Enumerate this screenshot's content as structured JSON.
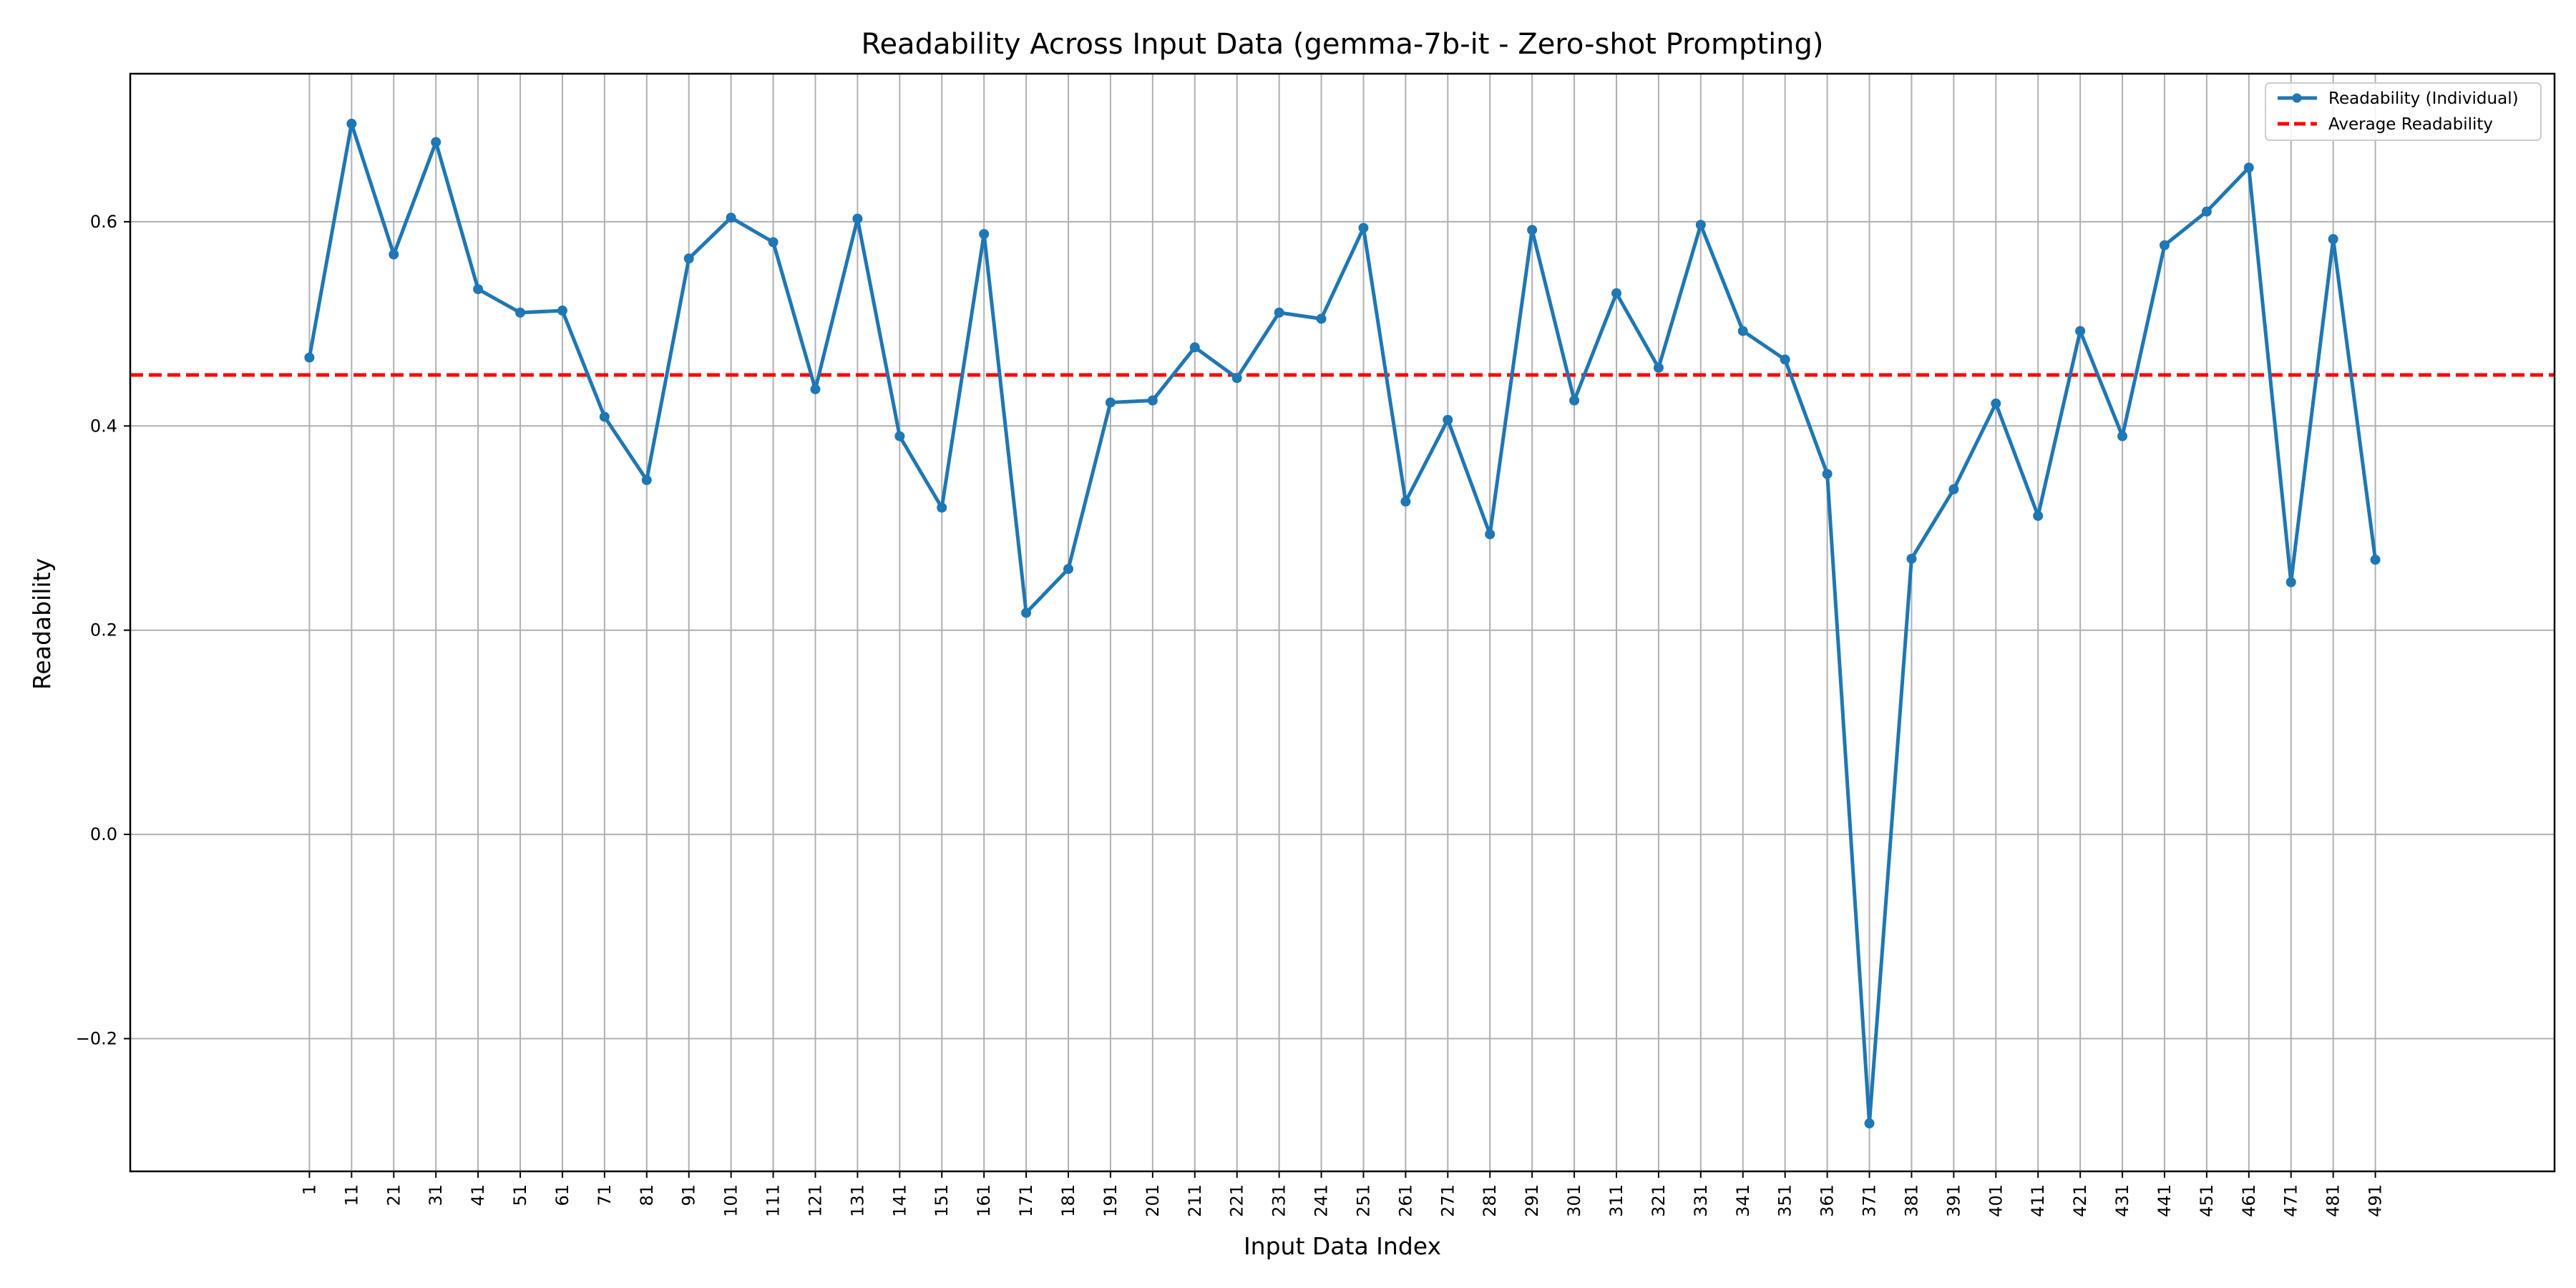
{
  "chart_data": {
    "type": "line",
    "title": "Readability Across Input Data (gemma-7b-it - Zero-shot Prompting)",
    "xlabel": "Input Data Index",
    "ylabel": "Readability",
    "xlim": [
      -41.5,
      533.5
    ],
    "ylim": [
      -0.33,
      0.745
    ],
    "grid": true,
    "legend_position": "top-right",
    "x_ticks": [
      "1",
      "11",
      "21",
      "31",
      "41",
      "51",
      "61",
      "71",
      "81",
      "91",
      "101",
      "111",
      "121",
      "131",
      "141",
      "151",
      "161",
      "171",
      "181",
      "191",
      "201",
      "211",
      "221",
      "231",
      "241",
      "251",
      "261",
      "271",
      "281",
      "291",
      "301",
      "311",
      "321",
      "331",
      "341",
      "351",
      "361",
      "371",
      "381",
      "391",
      "401",
      "411",
      "421",
      "431",
      "441",
      "451",
      "461",
      "471",
      "481",
      "491"
    ],
    "y_ticks": [
      {
        "value": -0.2,
        "label": "−0.2"
      },
      {
        "value": 0.0,
        "label": "0.0"
      },
      {
        "value": 0.2,
        "label": "0.2"
      },
      {
        "value": 0.4,
        "label": "0.4"
      },
      {
        "value": 0.6,
        "label": "0.6"
      }
    ],
    "series": [
      {
        "name": "Readability (Individual)",
        "color": "#1f77b4",
        "marker": "circle",
        "x": [
          1,
          11,
          21,
          31,
          41,
          51,
          61,
          71,
          81,
          91,
          101,
          111,
          121,
          131,
          141,
          151,
          161,
          171,
          181,
          191,
          201,
          211,
          221,
          231,
          241,
          251,
          261,
          271,
          281,
          291,
          301,
          311,
          321,
          331,
          341,
          351,
          361,
          371,
          381,
          391,
          401,
          411,
          421,
          431,
          441,
          451,
          461,
          471,
          481,
          491
        ],
        "values": [
          0.467,
          0.696,
          0.568,
          0.678,
          0.534,
          0.511,
          0.513,
          0.409,
          0.347,
          0.564,
          0.604,
          0.58,
          0.436,
          0.603,
          0.39,
          0.32,
          0.588,
          0.217,
          0.26,
          0.423,
          0.425,
          0.477,
          0.447,
          0.511,
          0.505,
          0.594,
          0.326,
          0.406,
          0.294,
          0.592,
          0.425,
          0.53,
          0.457,
          0.597,
          0.493,
          0.465,
          0.353,
          -0.283,
          0.27,
          0.338,
          0.422,
          0.312,
          0.493,
          0.39,
          0.577,
          0.61,
          0.653,
          0.247,
          0.583,
          0.269
        ]
      },
      {
        "name": "Average Readability",
        "color": "#ff0000",
        "style": "dashed",
        "constant": 0.45
      }
    ]
  }
}
